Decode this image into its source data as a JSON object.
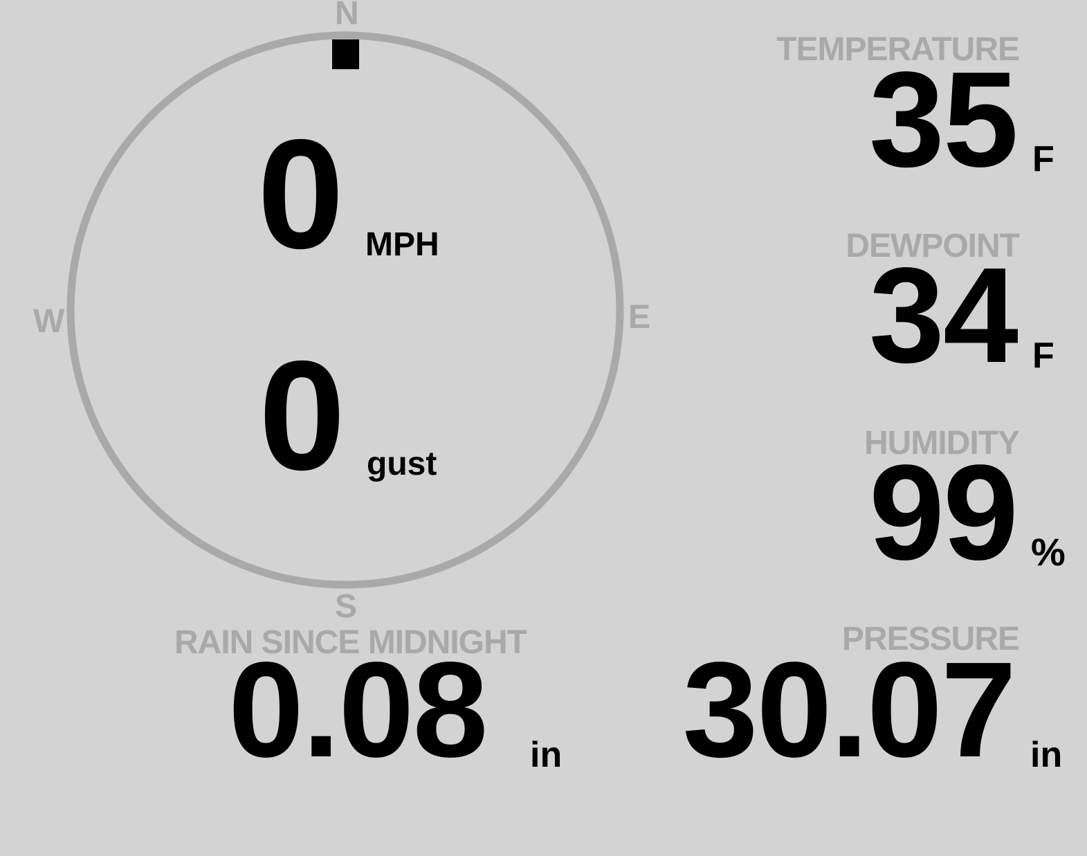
{
  "compass": {
    "north": "N",
    "south": "S",
    "east": "E",
    "west": "W",
    "wind_direction_deg": 0
  },
  "wind": {
    "speed": "0",
    "speed_unit": "MPH",
    "gust": "0",
    "gust_unit": "gust"
  },
  "temperature": {
    "label": "TEMPERATURE",
    "value": "35",
    "unit": "F"
  },
  "dewpoint": {
    "label": "DEWPOINT",
    "value": "34",
    "unit": "F"
  },
  "humidity": {
    "label": "HUMIDITY",
    "value": "99",
    "unit": "%"
  },
  "rain": {
    "label": "RAIN SINCE MIDNIGHT",
    "value": "0.08",
    "unit": "in"
  },
  "pressure": {
    "label": "PRESSURE",
    "value": "30.07",
    "unit": "in"
  },
  "colors": {
    "background": "#d3d3d3",
    "label": "#a9a9a9",
    "value": "#000000"
  }
}
